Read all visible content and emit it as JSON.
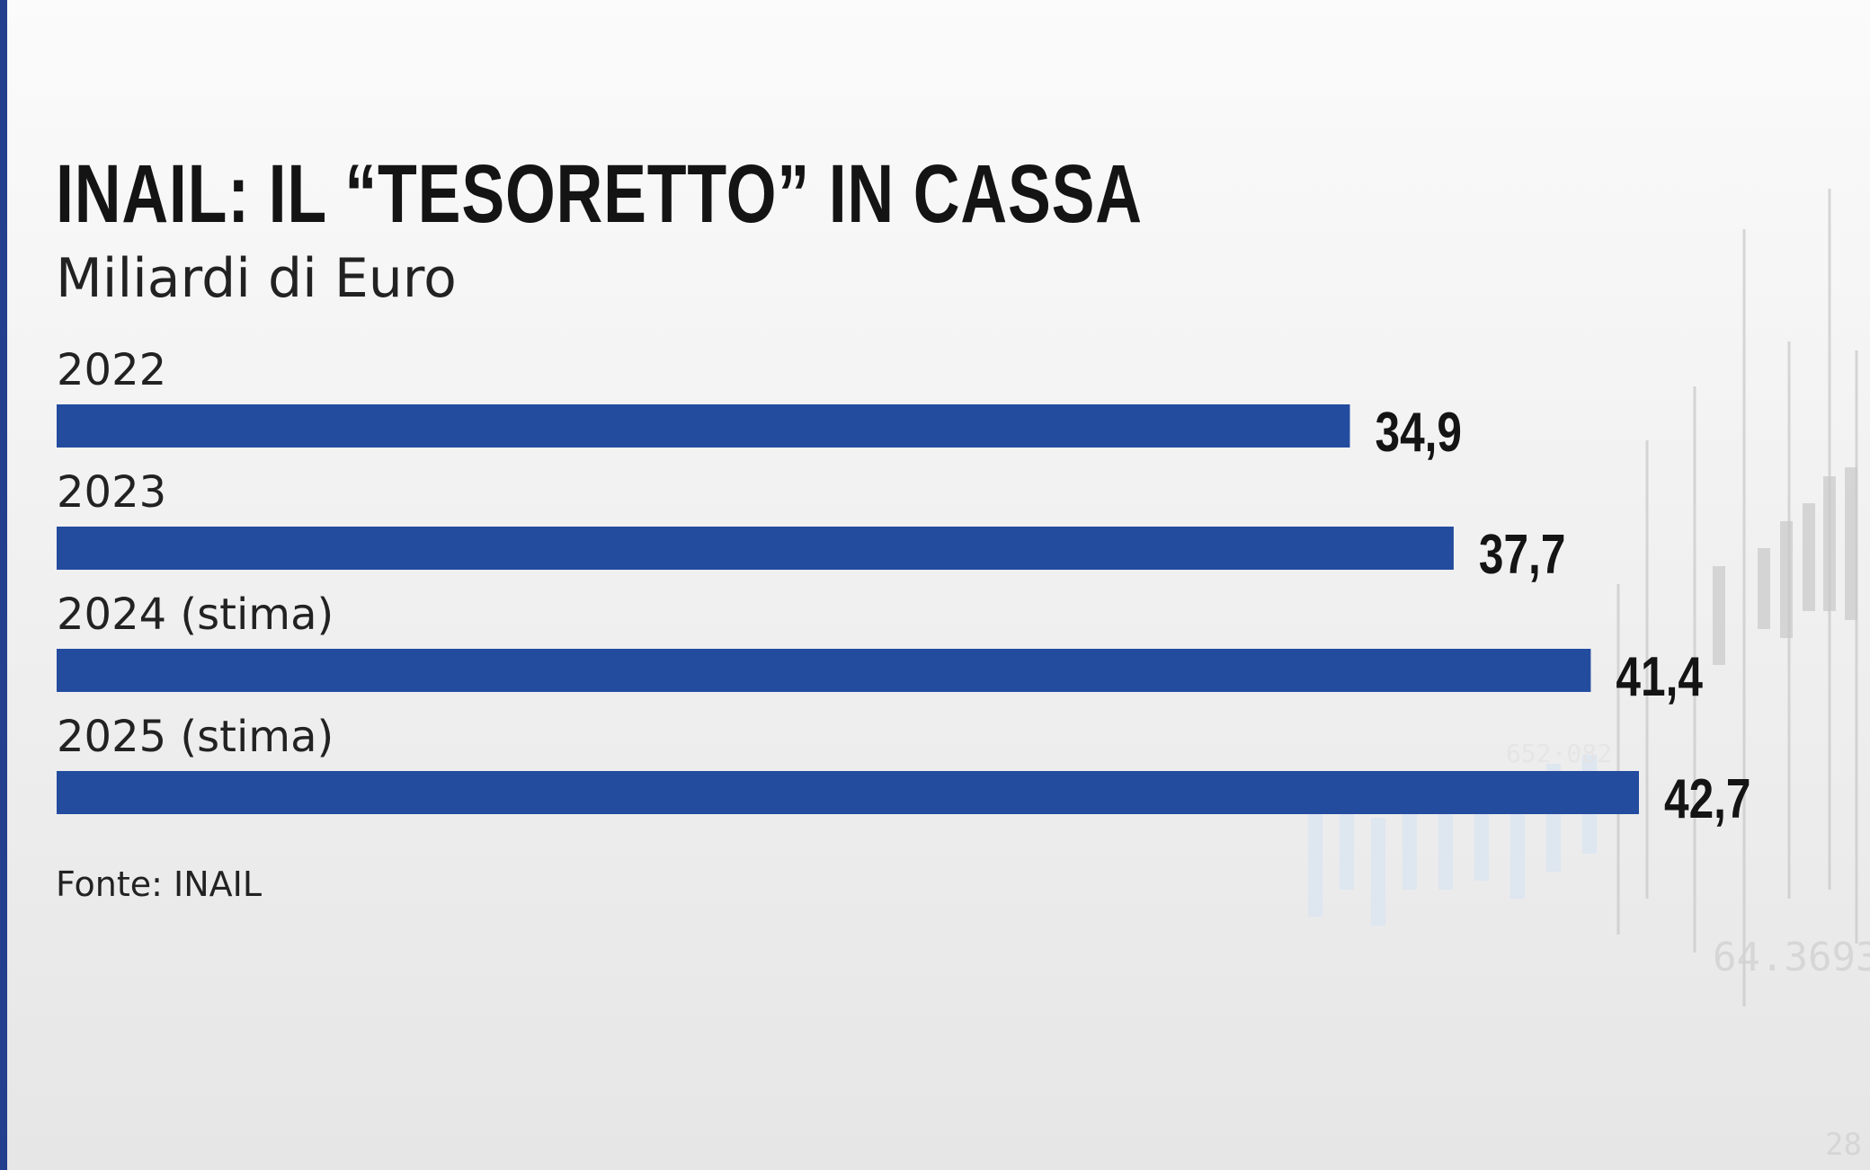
{
  "colors": {
    "bar": "#234c9f",
    "accent_strip": "#23408f",
    "text": "#141414"
  },
  "chart_data": {
    "type": "bar",
    "orientation": "horizontal",
    "title": "INAIL: IL “TESORETTO” IN CASSA",
    "subtitle": "Miliardi di Euro",
    "categories": [
      "2022",
      "2023",
      "2024 (stima)",
      "2025 (stima)"
    ],
    "values": [
      34.9,
      37.7,
      41.4,
      42.7
    ],
    "value_labels": [
      "34,9",
      "37,7",
      "41,4",
      "42,7"
    ],
    "xlim": [
      0,
      42.7
    ],
    "grid": false,
    "legend": "none"
  },
  "source": "Fonte: INAIL"
}
